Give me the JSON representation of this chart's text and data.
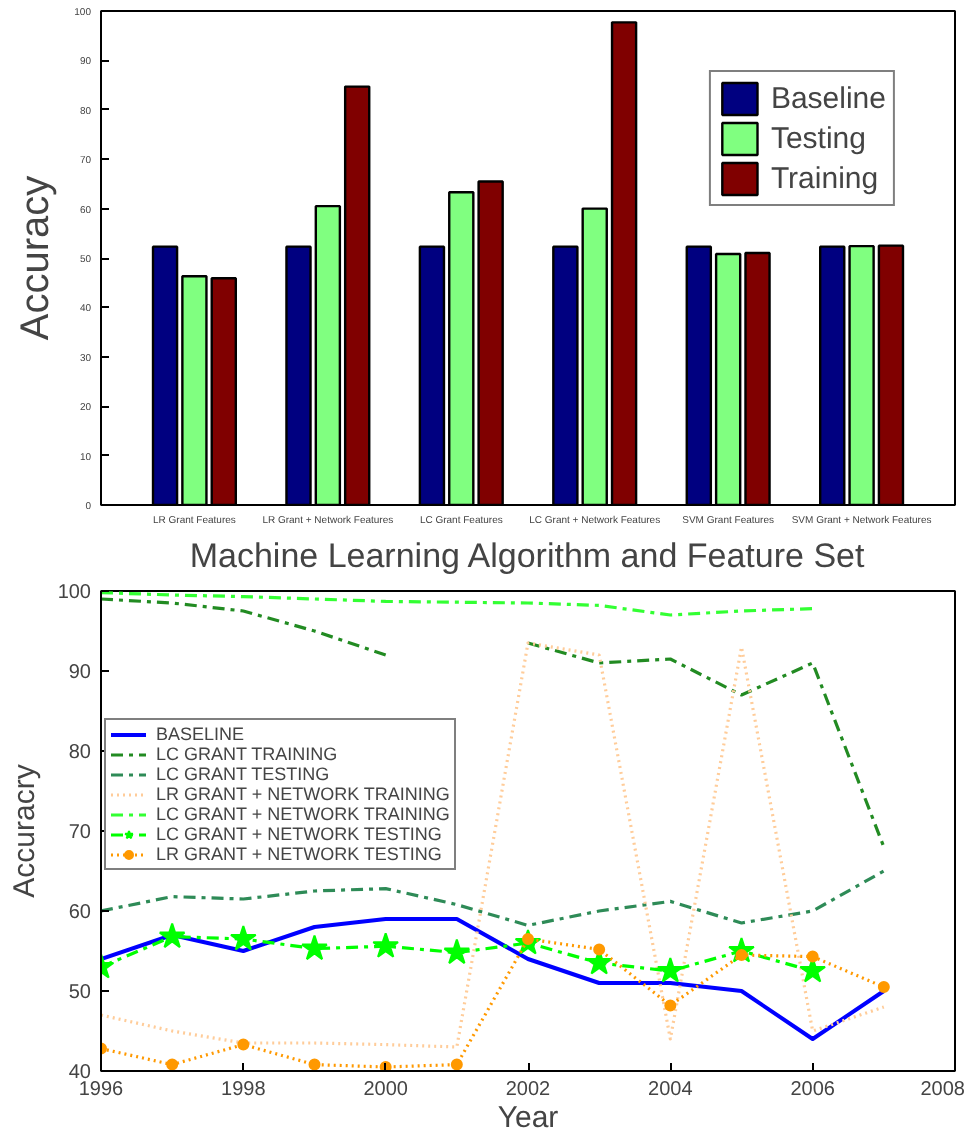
{
  "chart_data": [
    {
      "type": "bar",
      "xlabel": "Machine Learning Algorithm and Feature Set",
      "ylabel": "Accuracy",
      "categories": [
        "LR Grant Features",
        "LR Grant + Network Features",
        "LC Grant Features",
        "LC Grant + Network Features",
        "SVM Grant Features",
        "SVM Grant + Network Features"
      ],
      "ylim": [
        0,
        100
      ],
      "yticks": [
        0,
        10,
        20,
        30,
        40,
        50,
        60,
        70,
        80,
        90,
        100
      ],
      "grid": false,
      "legend": "top right",
      "series": [
        {
          "name": "Baseline",
          "color": "#000080",
          "values": [
            52.3,
            52.3,
            52.3,
            52.3,
            52.3,
            52.3
          ]
        },
        {
          "name": "Testing",
          "color": "#80ff80",
          "values": [
            46.3,
            60.5,
            63.3,
            60,
            50.8,
            52.4
          ]
        },
        {
          "name": "Training",
          "color": "#800000",
          "values": [
            45.9,
            84.7,
            65.5,
            97.7,
            51,
            52.5
          ]
        }
      ]
    },
    {
      "type": "line",
      "xlabel": "Year",
      "ylabel": "Accuracry",
      "x": [
        1996,
        1997,
        1998,
        1999,
        2000,
        2001,
        2002,
        2003,
        2004,
        2005,
        2006,
        2007
      ],
      "xlim": [
        1996,
        2008
      ],
      "xticks": [
        1996,
        1998,
        2000,
        2002,
        2004,
        2006,
        2008
      ],
      "ylim": [
        40,
        100
      ],
      "yticks": [
        40,
        50,
        60,
        70,
        80,
        90,
        100
      ],
      "grid": false,
      "legend": "left",
      "series": [
        {
          "name": "BASELINE",
          "color": "#0000ff",
          "line_style": "solid",
          "marker": "none",
          "values": [
            54,
            57,
            55,
            58,
            59,
            59,
            54,
            51,
            51,
            50,
            44,
            50
          ]
        },
        {
          "name": "LC GRANT TRAINING",
          "color": "#228b22",
          "line_style": "dashed",
          "marker": "none",
          "values": [
            99,
            98.5,
            97.5,
            95,
            92,
            null,
            93.5,
            91,
            91.5,
            87,
            91,
            68
          ]
        },
        {
          "name": "LC GRANT TESTING",
          "color": "#2e8b57",
          "line_style": "dashed",
          "marker": "none",
          "values": [
            60,
            61.8,
            61.5,
            62.5,
            62.8,
            60.8,
            58.2,
            60,
            61.2,
            58.5,
            60,
            65
          ]
        },
        {
          "name": "LR GRANT + NETWORK TRAINING",
          "color": "#ffcc99",
          "line_style": "dotted",
          "marker": "none",
          "values": [
            47,
            45,
            43.5,
            43.5,
            43.3,
            43,
            93.5,
            92,
            44,
            93,
            45,
            48
          ]
        },
        {
          "name": "LC GRANT + NETWORK TRAINING",
          "color": "#33ff33",
          "line_style": "dashed",
          "marker": "none",
          "values": [
            99.8,
            99.5,
            99.3,
            99,
            98.7,
            98.6,
            98.5,
            98.2,
            97,
            97.5,
            97.8,
            null
          ]
        },
        {
          "name": "LC GRANT + NETWORK TESTING",
          "color": "#00ff00",
          "line_style": "dashed",
          "marker": "star",
          "values": [
            53,
            56.8,
            56.5,
            55.3,
            55.6,
            54.8,
            56,
            53.5,
            52.5,
            55,
            52.5,
            null
          ]
        },
        {
          "name": "LR GRANT + NETWORK TESTING",
          "color": "#ff9900",
          "line_style": "dotted",
          "marker": "circle",
          "values": [
            42.8,
            40.8,
            43.3,
            40.8,
            40.5,
            40.8,
            56.5,
            55.2,
            48.2,
            54.5,
            54.3,
            50.5
          ]
        }
      ]
    }
  ]
}
